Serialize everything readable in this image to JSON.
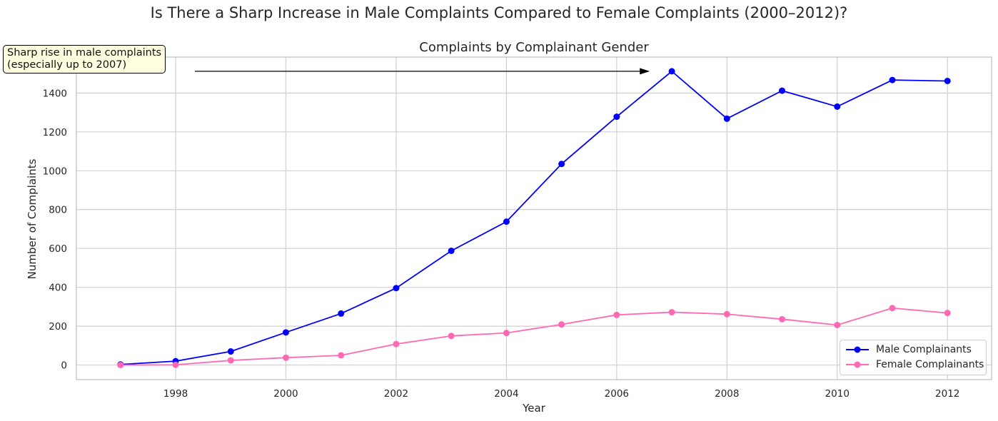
{
  "suptitle": "Is There a Sharp Increase in Male Complaints Compared to Female Complaints (2000–2012)?",
  "annotation": {
    "lines": [
      "Sharp rise in male complaints",
      "(especially up to 2007)"
    ]
  },
  "colors": {
    "male": "#0000ff",
    "female": "#ff69b4",
    "grid": "#d0d0d0",
    "frame": "#bdbdbd"
  },
  "chart_data": {
    "type": "line",
    "title": "Complaints by Complainant Gender",
    "xlabel": "Year",
    "ylabel": "Number of Complaints",
    "x": [
      1997,
      1998,
      1999,
      2000,
      2001,
      2002,
      2003,
      2004,
      2005,
      2006,
      2007,
      2008,
      2009,
      2010,
      2011,
      2012
    ],
    "xticks": [
      1998,
      2000,
      2002,
      2004,
      2006,
      2008,
      2010,
      2012
    ],
    "yticks": [
      0,
      200,
      400,
      600,
      800,
      1000,
      1200,
      1400
    ],
    "xlim": [
      1996.2,
      2012.8
    ],
    "ylim": [
      -75,
      1585
    ],
    "grid": true,
    "legend_position": "lower right",
    "series": [
      {
        "name": "Male Complainants",
        "color": "#0000ff",
        "values": [
          3,
          20,
          70,
          168,
          265,
          396,
          588,
          738,
          1035,
          1278,
          1512,
          1268,
          1412,
          1330,
          1467,
          1462
        ]
      },
      {
        "name": "Female Complainants",
        "color": "#ff69b4",
        "values": [
          0,
          1,
          24,
          38,
          50,
          108,
          150,
          165,
          209,
          258,
          272,
          262,
          236,
          206,
          293,
          268
        ]
      }
    ],
    "annotation_arrow": {
      "from_x": 1998.35,
      "to_x": 2006.6,
      "y": 1512
    }
  }
}
